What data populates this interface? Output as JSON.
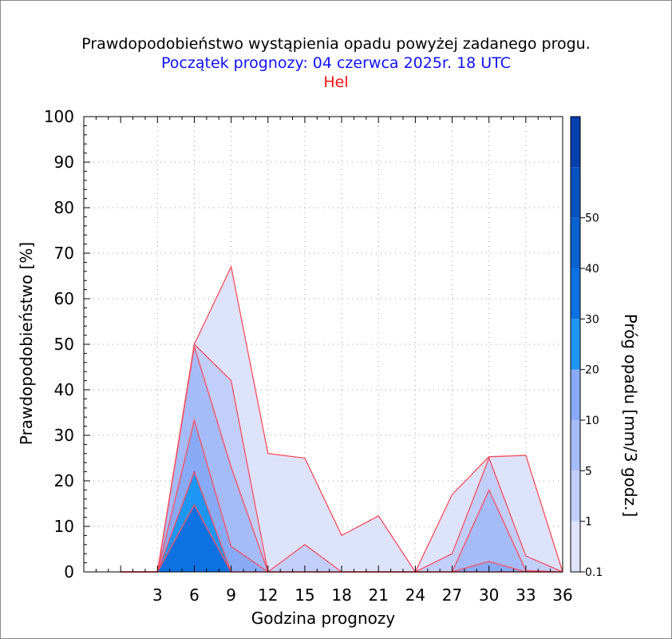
{
  "titles": {
    "main": "Prawdopodobieństwo wystąpienia opadu powyżej zadanego progu.",
    "forecast_start": "Początek prognozy: 04 czerwca 2025r. 18 UTC",
    "location": "Hel"
  },
  "colors": {
    "main_title": "#000000",
    "forecast_start": "#1010ff",
    "location": "#ff1010",
    "series_outline": "#ff4d5e"
  },
  "chart_data": {
    "type": "area",
    "title": "Prawdopodobieństwo wystąpienia opadu powyżej zadanego progu.",
    "xlabel": "Godzina prognozy",
    "ylabel": "Prawdopodobieństwo [%]",
    "colorbar_label": "Próg opadu [mm/3 godz.]",
    "xlim": [
      -3,
      36
    ],
    "ylim": [
      0,
      100
    ],
    "x_ticks": [
      3,
      6,
      9,
      12,
      15,
      18,
      21,
      24,
      27,
      30,
      33,
      36
    ],
    "y_ticks": [
      0,
      10,
      20,
      30,
      40,
      50,
      60,
      70,
      80,
      90,
      100
    ],
    "grid": true,
    "x": [
      0,
      3,
      6,
      9,
      12,
      15,
      18,
      21,
      24,
      27,
      30,
      33,
      36
    ],
    "series": [
      {
        "threshold": "0.1",
        "color": "#dde3fb",
        "values": [
          0,
          0,
          50,
          67,
          26,
          25,
          8,
          12.3,
          0,
          17,
          25.3,
          25.6,
          0
        ]
      },
      {
        "threshold": "1",
        "color": "#c2cffa",
        "values": [
          0,
          0,
          50,
          42,
          0,
          6,
          0,
          0,
          0,
          4,
          25,
          3.5,
          0
        ]
      },
      {
        "threshold": "5",
        "color": "#a6bcf9",
        "values": [
          0,
          0,
          49.5,
          23,
          0,
          0,
          0,
          0,
          0,
          0,
          18,
          0.3,
          0
        ]
      },
      {
        "threshold": "10",
        "color": "#89abf7",
        "values": [
          0,
          0,
          33.3,
          5.6,
          0,
          0,
          0,
          0,
          0,
          0,
          2.3,
          0,
          0
        ]
      },
      {
        "threshold": "20",
        "color": "#1e96f5",
        "values": [
          0,
          0,
          22,
          0,
          0,
          0,
          0,
          0,
          0,
          0,
          0,
          0,
          0
        ]
      },
      {
        "threshold": "30",
        "color": "#0c72e2",
        "values": [
          0,
          0,
          14.7,
          0,
          0,
          0,
          0,
          0,
          0,
          0,
          0,
          0,
          0
        ]
      }
    ],
    "colorbar": {
      "ticks": [
        "0.1",
        "1",
        "5",
        "10",
        "20",
        "30",
        "40",
        "50"
      ],
      "colors": [
        "#dde3fb",
        "#c2cffa",
        "#a6bcf9",
        "#89abf7",
        "#1e96f5",
        "#0c72e2",
        "#0a62d2",
        "#0851c1",
        "#063fae"
      ]
    }
  }
}
